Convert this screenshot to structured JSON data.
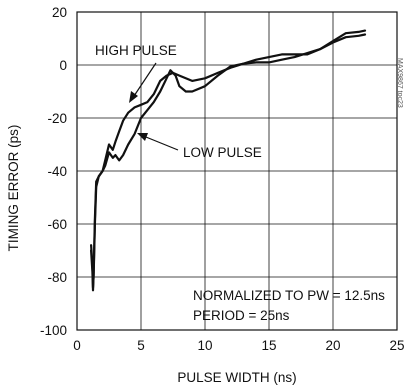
{
  "chart_data": {
    "type": "line",
    "title": "",
    "xlabel": "PULSE WIDTH (ns)",
    "ylabel": "TIMING ERROR (ps)",
    "xlim": [
      0,
      25
    ],
    "ylim": [
      -100,
      20
    ],
    "xticks": [
      "0",
      "5",
      "10",
      "15",
      "20",
      "25"
    ],
    "yticks": [
      "20",
      "0",
      "-20",
      "-40",
      "-60",
      "-80",
      "-100"
    ],
    "grid": true,
    "series": [
      {
        "name": "HIGH PULSE",
        "color": "#111111",
        "points": [
          [
            1.1,
            -68
          ],
          [
            1.2,
            -75
          ],
          [
            1.25,
            -84
          ],
          [
            1.3,
            -80
          ],
          [
            1.4,
            -60
          ],
          [
            1.5,
            -46
          ],
          [
            1.7,
            -42
          ],
          [
            2.0,
            -40
          ],
          [
            2.2,
            -36
          ],
          [
            2.5,
            -30
          ],
          [
            2.8,
            -32
          ],
          [
            3.0,
            -29
          ],
          [
            3.3,
            -25
          ],
          [
            3.6,
            -21
          ],
          [
            4.0,
            -18
          ],
          [
            4.5,
            -16
          ],
          [
            5.0,
            -15
          ],
          [
            5.5,
            -14
          ],
          [
            6.0,
            -11
          ],
          [
            6.5,
            -6
          ],
          [
            7.0,
            -4
          ],
          [
            7.5,
            -3
          ],
          [
            8.0,
            -4
          ],
          [
            9.0,
            -6
          ],
          [
            10.0,
            -5
          ],
          [
            11.0,
            -3
          ],
          [
            12.0,
            -1
          ],
          [
            13.0,
            0.5
          ],
          [
            14.0,
            2
          ],
          [
            15.0,
            3
          ],
          [
            16.0,
            4
          ],
          [
            17.0,
            4
          ],
          [
            18.0,
            4
          ],
          [
            19.0,
            6
          ],
          [
            20.0,
            9
          ],
          [
            21.0,
            12
          ],
          [
            22.0,
            12.5
          ],
          [
            22.5,
            13
          ]
        ]
      },
      {
        "name": "LOW PULSE",
        "color": "#111111",
        "points": [
          [
            1.1,
            -70
          ],
          [
            1.2,
            -78
          ],
          [
            1.25,
            -85
          ],
          [
            1.3,
            -79
          ],
          [
            1.4,
            -58
          ],
          [
            1.5,
            -44
          ],
          [
            1.7,
            -42
          ],
          [
            2.0,
            -40
          ],
          [
            2.2,
            -38
          ],
          [
            2.5,
            -33
          ],
          [
            2.8,
            -35
          ],
          [
            3.0,
            -34
          ],
          [
            3.3,
            -36
          ],
          [
            3.6,
            -34
          ],
          [
            4.0,
            -30
          ],
          [
            4.5,
            -26
          ],
          [
            5.0,
            -20
          ],
          [
            5.5,
            -17
          ],
          [
            6.0,
            -14
          ],
          [
            6.5,
            -10
          ],
          [
            7.0,
            -5
          ],
          [
            7.3,
            -2
          ],
          [
            7.7,
            -4
          ],
          [
            8.0,
            -8
          ],
          [
            8.5,
            -10
          ],
          [
            9.0,
            -10
          ],
          [
            10.0,
            -8
          ],
          [
            11.0,
            -4
          ],
          [
            12.0,
            -0.5
          ],
          [
            13.0,
            0.5
          ],
          [
            14.0,
            1
          ],
          [
            15.0,
            1
          ],
          [
            16.0,
            2
          ],
          [
            17.0,
            3
          ],
          [
            18.0,
            4.5
          ],
          [
            19.0,
            6
          ],
          [
            20.0,
            8.5
          ],
          [
            21.0,
            10.5
          ],
          [
            22.0,
            11
          ],
          [
            22.5,
            11.5
          ]
        ]
      }
    ],
    "annotations": {
      "high_pulse": "HIGH PULSE",
      "low_pulse": "LOW PULSE",
      "note_line1": "NORMALIZED TO PW = 12.5ns",
      "note_line2": "PERIOD = 25ns"
    },
    "watermark": "MAX9867 toc23"
  }
}
